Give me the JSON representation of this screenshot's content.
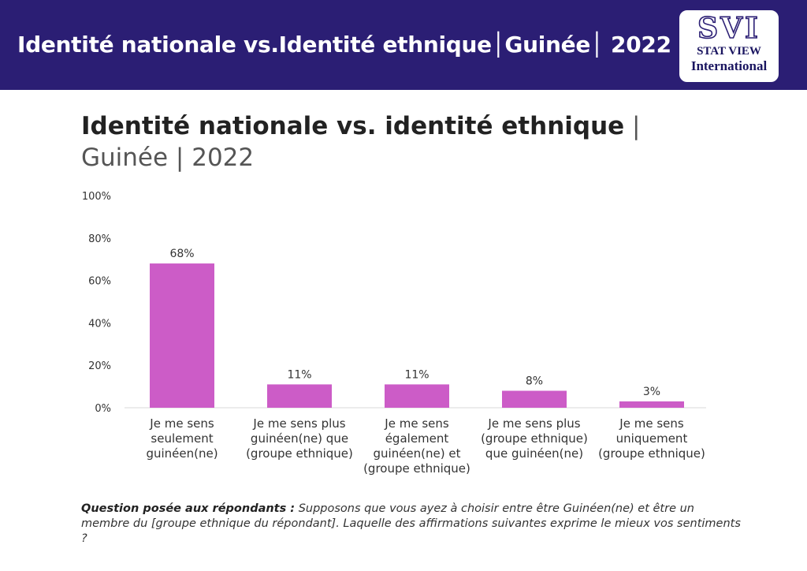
{
  "header": {
    "title": "Identité nationale vs.Identité ethnique│Guinée│ 2022",
    "logo": {
      "mark": "SVI",
      "line1": "STAT VIEW",
      "line2": "International"
    }
  },
  "colors": {
    "banner": "#2b1e74",
    "bar": "#cc5cc7"
  },
  "chart_data": {
    "type": "bar",
    "title_bold": "Identité nationale vs. identité ethnique",
    "title_rest": " | Guinée | 2022",
    "xlabel": "",
    "ylabel": "",
    "ylim": [
      0,
      100
    ],
    "yticks": [
      0,
      20,
      40,
      60,
      80,
      100
    ],
    "ytick_labels": [
      "0%",
      "20%",
      "40%",
      "60%",
      "80%",
      "100%"
    ],
    "grid": false,
    "categories": [
      [
        "Je me sens",
        "seulement",
        "guinéen(ne)"
      ],
      [
        "Je me sens plus",
        "guinéen(ne) que",
        "(groupe ethnique)"
      ],
      [
        "Je me sens",
        "également",
        "guinéen(ne) et",
        "(groupe ethnique)"
      ],
      [
        "Je me sens plus",
        "(groupe ethnique)",
        "que guinéen(ne)"
      ],
      [
        "Je me sens",
        "uniquement",
        "(groupe ethnique)"
      ]
    ],
    "values": [
      68,
      11,
      11,
      8,
      3
    ],
    "value_labels": [
      "68%",
      "11%",
      "11%",
      "8%",
      "3%"
    ]
  },
  "footnote": {
    "label": "Question posée aux répondants :",
    "text": " Supposons que vous ayez à choisir entre être Guinéen(ne) et être un membre du [groupe ethnique du répondant]. Laquelle des affirmations suivantes exprime le mieux vos sentiments ?"
  }
}
